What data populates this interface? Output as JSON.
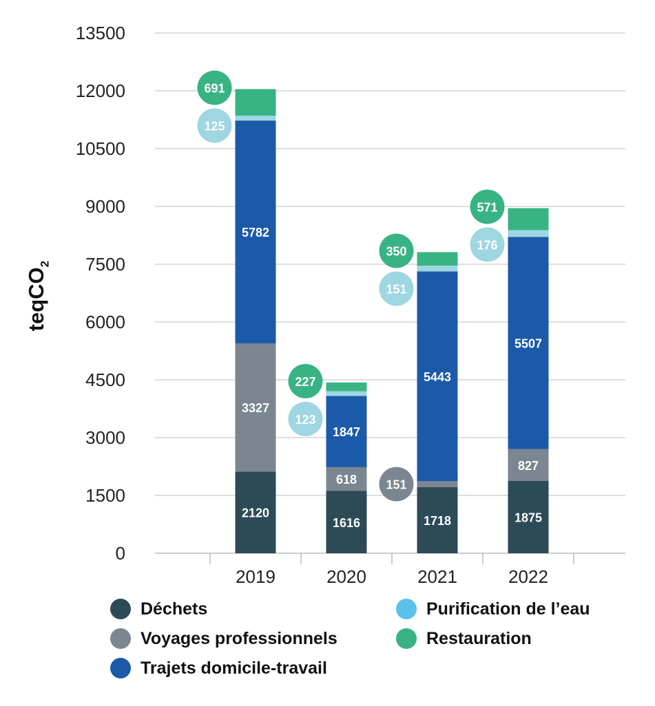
{
  "chart_data": {
    "type": "bar",
    "stacked": true,
    "categories": [
      "2019",
      "2020",
      "2021",
      "2022"
    ],
    "series": [
      {
        "name": "Déchets",
        "color": "#2d4a57",
        "values": [
          2120,
          1616,
          1718,
          1875
        ],
        "label_color": "#ffffff",
        "callout": [
          false,
          false,
          false,
          false
        ]
      },
      {
        "name": "Voyages professionnels",
        "color": "#7b8690",
        "values": [
          3327,
          618,
          151,
          827
        ],
        "label_color": "#ffffff",
        "callout": [
          false,
          false,
          true,
          false
        ]
      },
      {
        "name": "Trajets domicile-travail",
        "color": "#1b5aa8",
        "values": [
          5782,
          1847,
          5443,
          5507
        ],
        "label_color": "#ffffff",
        "callout": [
          false,
          false,
          false,
          false
        ]
      },
      {
        "name": "Purification de l’eau",
        "color": "#9ed6e2",
        "legend_color": "#5cc1ea",
        "values": [
          125,
          123,
          151,
          176
        ],
        "label_color": "#ffffff",
        "callout": [
          true,
          true,
          true,
          true
        ]
      },
      {
        "name": "Restauration",
        "color": "#38b384",
        "values": [
          691,
          227,
          350,
          571
        ],
        "label_color": "#ffffff",
        "callout": [
          true,
          true,
          true,
          true
        ]
      }
    ],
    "ylabel": "teqCO",
    "ylabel_sub": "2",
    "xlabel": "",
    "ylim": [
      0,
      13500
    ],
    "yticks": [
      0,
      1500,
      3000,
      4500,
      6000,
      7500,
      9000,
      10500,
      12000,
      13500
    ],
    "grid": true,
    "legend_position": "bottom"
  },
  "legend": {
    "items": [
      {
        "label": "Déchets",
        "color": "#2d4a57"
      },
      {
        "label": "Voyages professionnels",
        "color": "#7b8690"
      },
      {
        "label": "Trajets domicile-travail",
        "color": "#1b5aa8"
      },
      {
        "label": "Purification de l’eau",
        "color": "#5cc1ea"
      },
      {
        "label": "Restauration",
        "color": "#38b384"
      }
    ]
  }
}
